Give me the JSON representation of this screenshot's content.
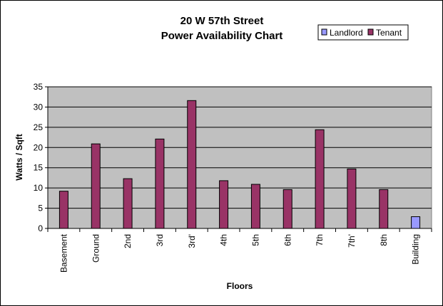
{
  "chart_data": {
    "type": "bar",
    "title": [
      "20 W 57th Street",
      "Power Availability Chart"
    ],
    "xlabel": "Floors",
    "ylabel": "Watts / Sqft",
    "ylim": [
      0,
      35
    ],
    "yticks": [
      0,
      5,
      10,
      15,
      20,
      25,
      30,
      35
    ],
    "grid": true,
    "legend_position": "top-right",
    "categories": [
      "Basement",
      "Ground",
      "2nd",
      "3rd",
      "3rd'",
      "4th",
      "5th",
      "6th",
      "7th",
      "7th'",
      "8th",
      "Building"
    ],
    "series": [
      {
        "name": "Landlord",
        "color": "#9999ff",
        "values": [
          null,
          null,
          null,
          null,
          null,
          null,
          null,
          null,
          null,
          null,
          null,
          2.9
        ]
      },
      {
        "name": "Tenant",
        "color": "#993366",
        "values": [
          9.2,
          20.9,
          12.3,
          22.1,
          31.6,
          11.8,
          10.9,
          9.6,
          24.4,
          14.7,
          9.6,
          null
        ]
      }
    ],
    "plot_background": "#c0c0c0"
  }
}
